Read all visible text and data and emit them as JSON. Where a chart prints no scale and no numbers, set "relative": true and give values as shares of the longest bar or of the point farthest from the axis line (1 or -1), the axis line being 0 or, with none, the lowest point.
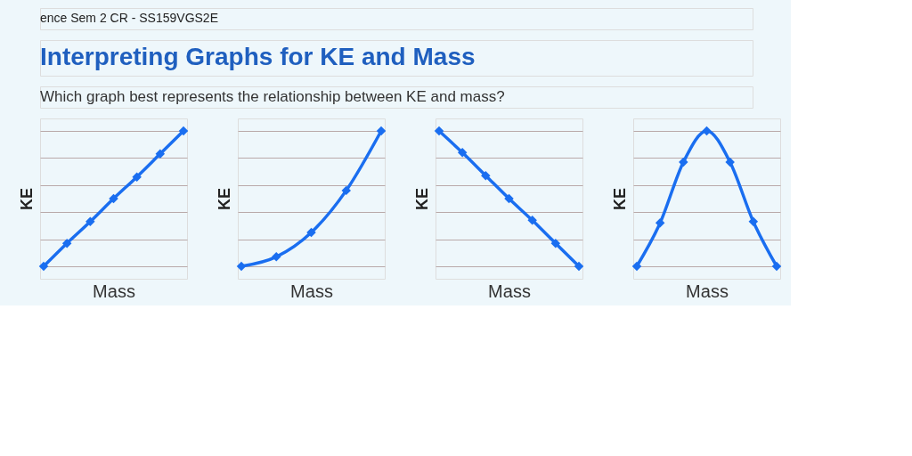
{
  "chart_data": [
    {
      "type": "line",
      "title": "Interpreting Graphs for KE and Mass",
      "annotations": [
        "ence Sem 2 CR - SS159VGS2E",
        "Which graph best represents the relationship between KE and mass?"
      ],
      "relative": true,
      "categories": [
        null,
        null,
        null,
        null,
        null,
        null,
        null
      ],
      "xlabel": "Mass",
      "ylabel": "KE",
      "grid": "y",
      "marker": "diamond",
      "line_style": "solid",
      "series": [
        {
          "color": "#1a6ef0",
          "values": [
            0,
            0.17,
            0.33,
            0.5,
            0.66,
            0.83,
            1
          ]
        }
      ]
    },
    {
      "type": "line",
      "relative": true,
      "categories": [
        null,
        null,
        null,
        null,
        null
      ],
      "xlabel": "Mass",
      "ylabel": "KE",
      "grid": "y",
      "marker": "diamond",
      "line_style": "solid",
      "series": [
        {
          "color": "#1a6ef0",
          "values": [
            0,
            0.07,
            0.25,
            0.56,
            1
          ]
        }
      ]
    },
    {
      "type": "line",
      "relative": true,
      "categories": [
        null,
        null,
        null,
        null,
        null,
        null,
        null
      ],
      "xlabel": "Mass",
      "ylabel": "KE",
      "grid": "y",
      "marker": "diamond",
      "line_style": "solid",
      "series": [
        {
          "color": "#1a6ef0",
          "values": [
            1,
            0.84,
            0.67,
            0.5,
            0.34,
            0.17,
            0
          ]
        }
      ]
    },
    {
      "type": "line",
      "relative": true,
      "categories": [
        null,
        null,
        null,
        null,
        null,
        null,
        null
      ],
      "xlabel": "Mass",
      "ylabel": "KE",
      "grid": "y",
      "marker": "diamond",
      "line_style": "solid",
      "series": [
        {
          "color": "#1a6ef0",
          "values": [
            0,
            0.32,
            0.77,
            1,
            0.77,
            0.33,
            0
          ]
        }
      ]
    }
  ]
}
